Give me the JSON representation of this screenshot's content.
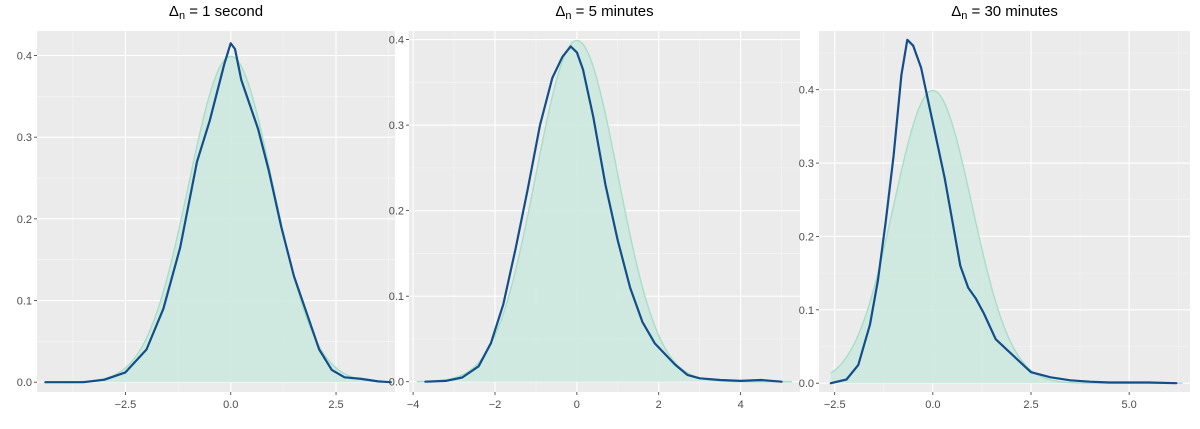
{
  "chart_data": [
    {
      "type": "area",
      "title": "Δn = 1 second",
      "title_parts": {
        "symbol": "Δ",
        "subscript": "n",
        "rest": " = 1 second"
      },
      "xlim": [
        -4.6,
        3.9
      ],
      "ylim": [
        -0.012,
        0.43
      ],
      "x_ticks": [
        -2.5,
        0.0,
        2.5
      ],
      "x_tick_labels": [
        "−2.5",
        "0.0",
        "2.5"
      ],
      "y_ticks": [
        0.0,
        0.1,
        0.2,
        0.3,
        0.4
      ],
      "y_tick_labels": [
        "0.0",
        "0.1",
        "0.2",
        "0.3",
        "0.4"
      ],
      "grid": true,
      "series": [
        {
          "kind": "normal_reference",
          "mean": 0,
          "sd": 1,
          "color": "#a8ddc8",
          "fill": "#cfe9df"
        },
        {
          "kind": "empirical_density",
          "color": "#124e8a",
          "x": [
            -4.4,
            -3.5,
            -3.0,
            -2.5,
            -2.0,
            -1.6,
            -1.2,
            -0.8,
            -0.5,
            -0.3,
            -0.15,
            0.0,
            0.1,
            0.25,
            0.45,
            0.65,
            0.9,
            1.2,
            1.5,
            1.8,
            2.1,
            2.4,
            2.7,
            3.1,
            3.5,
            3.8
          ],
          "y": [
            0.0,
            0.0,
            0.003,
            0.012,
            0.04,
            0.09,
            0.165,
            0.27,
            0.32,
            0.36,
            0.39,
            0.415,
            0.408,
            0.37,
            0.34,
            0.31,
            0.26,
            0.19,
            0.13,
            0.085,
            0.04,
            0.015,
            0.006,
            0.004,
            0.001,
            0.0
          ]
        }
      ]
    },
    {
      "type": "area",
      "title": "Δn = 5 minutes",
      "title_parts": {
        "symbol": "Δ",
        "subscript": "n",
        "rest": " = 5 minutes"
      },
      "xlim": [
        -4.1,
        5.45
      ],
      "ylim": [
        -0.012,
        0.41
      ],
      "x_ticks": [
        -4,
        -2,
        0,
        2,
        4
      ],
      "x_tick_labels": [
        "−4",
        "−2",
        "0",
        "2",
        "4"
      ],
      "y_ticks": [
        0.0,
        0.1,
        0.2,
        0.3,
        0.4
      ],
      "y_tick_labels": [
        "0.0",
        "0.1",
        "0.2",
        "0.3",
        "0.4"
      ],
      "grid": true,
      "series": [
        {
          "kind": "normal_reference",
          "mean": 0,
          "sd": 1,
          "color": "#a8ddc8",
          "fill": "#cfe9df"
        },
        {
          "kind": "empirical_density",
          "color": "#124e8a",
          "x": [
            -3.7,
            -3.2,
            -2.8,
            -2.4,
            -2.1,
            -1.8,
            -1.5,
            -1.2,
            -0.9,
            -0.6,
            -0.35,
            -0.15,
            0.0,
            0.15,
            0.4,
            0.7,
            1.0,
            1.3,
            1.6,
            1.9,
            2.1,
            2.4,
            2.7,
            3.0,
            3.5,
            4.0,
            4.5,
            5.0
          ],
          "y": [
            0.0,
            0.001,
            0.005,
            0.018,
            0.045,
            0.09,
            0.155,
            0.225,
            0.3,
            0.355,
            0.38,
            0.392,
            0.385,
            0.365,
            0.31,
            0.23,
            0.165,
            0.11,
            0.07,
            0.045,
            0.035,
            0.02,
            0.008,
            0.004,
            0.002,
            0.001,
            0.002,
            0.0
          ]
        }
      ]
    },
    {
      "type": "area",
      "title": "Δn = 30 minutes",
      "title_parts": {
        "symbol": "Δ",
        "subscript": "n",
        "rest": " = 30 minutes"
      },
      "xlim": [
        -2.9,
        6.55
      ],
      "ylim": [
        -0.012,
        0.48
      ],
      "x_ticks": [
        -2.5,
        0.0,
        2.5,
        5.0
      ],
      "x_tick_labels": [
        "−2.5",
        "0.0",
        "2.5",
        "5.0"
      ],
      "y_ticks": [
        0.0,
        0.1,
        0.2,
        0.3,
        0.4
      ],
      "y_tick_labels": [
        "0.0",
        "0.1",
        "0.2",
        "0.3",
        "0.4"
      ],
      "grid": true,
      "series": [
        {
          "kind": "normal_reference",
          "mean": 0,
          "sd": 1,
          "color": "#a8ddc8",
          "fill": "#cfe9df",
          "x_from": -2.6
        },
        {
          "kind": "empirical_density",
          "color": "#124e8a",
          "x": [
            -2.6,
            -2.2,
            -1.9,
            -1.6,
            -1.4,
            -1.2,
            -1.0,
            -0.8,
            -0.65,
            -0.5,
            -0.3,
            -0.1,
            0.1,
            0.3,
            0.5,
            0.7,
            0.9,
            1.1,
            1.3,
            1.6,
            1.9,
            2.2,
            2.5,
            3.0,
            3.5,
            4.0,
            4.5,
            5.0,
            5.5,
            6.2
          ],
          "y": [
            0.0,
            0.005,
            0.025,
            0.08,
            0.14,
            0.22,
            0.31,
            0.42,
            0.468,
            0.46,
            0.43,
            0.38,
            0.33,
            0.28,
            0.22,
            0.16,
            0.13,
            0.115,
            0.095,
            0.06,
            0.045,
            0.03,
            0.015,
            0.008,
            0.004,
            0.002,
            0.001,
            0.001,
            0.001,
            0.0
          ]
        }
      ]
    }
  ]
}
